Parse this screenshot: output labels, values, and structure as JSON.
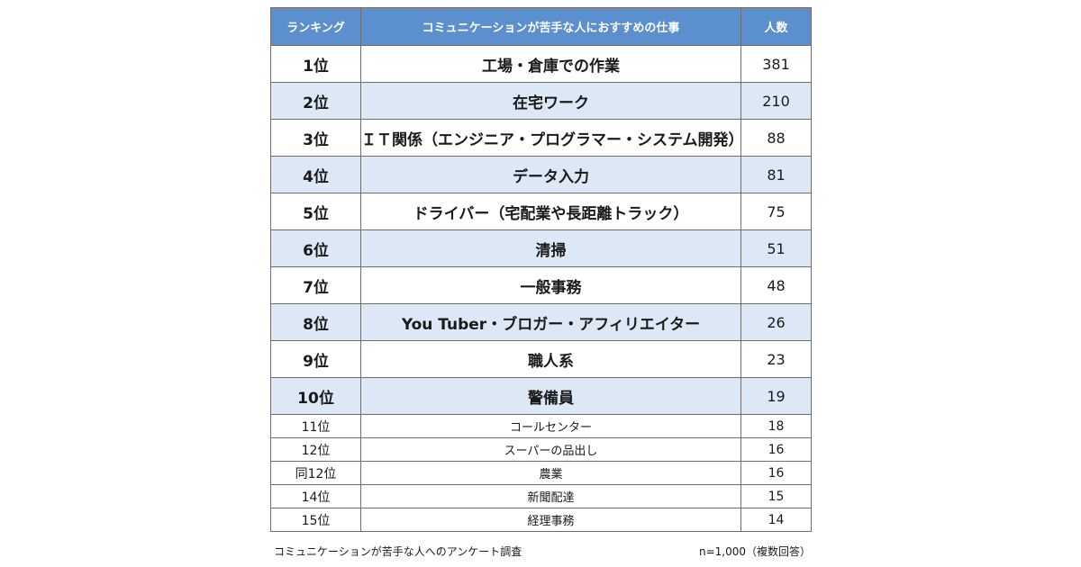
{
  "table": {
    "headers": {
      "rank": "ランキング",
      "job": "コミュニケーションが苦手な人におすすめの仕事",
      "count": "人数"
    },
    "rows": [
      {
        "rank": "1位",
        "job": "工場・倉庫での作業",
        "count": "381"
      },
      {
        "rank": "2位",
        "job": "在宅ワーク",
        "count": "210"
      },
      {
        "rank": "3位",
        "job": "ＩＴ関係（エンジニア・プログラマー・システム開発）",
        "count": "88"
      },
      {
        "rank": "4位",
        "job": "データ入力",
        "count": "81"
      },
      {
        "rank": "5位",
        "job": "ドライバー（宅配業や長距離トラック）",
        "count": "75"
      },
      {
        "rank": "6位",
        "job": "清掃",
        "count": "51"
      },
      {
        "rank": "7位",
        "job": "一般事務",
        "count": "48"
      },
      {
        "rank": "8位",
        "job": "You Tuber・ブロガー・アフィリエイター",
        "count": "26"
      },
      {
        "rank": "9位",
        "job": "職人系",
        "count": "23"
      },
      {
        "rank": "10位",
        "job": "警備員",
        "count": "19"
      },
      {
        "rank": "11位",
        "job": "コールセンター",
        "count": "18"
      },
      {
        "rank": "12位",
        "job": "スーパーの品出し",
        "count": "16"
      },
      {
        "rank": "同12位",
        "job": "農業",
        "count": "16"
      },
      {
        "rank": "14位",
        "job": "新聞配達",
        "count": "15"
      },
      {
        "rank": "15位",
        "job": "経理事務",
        "count": "14"
      }
    ]
  },
  "footer": {
    "source": "コミュニケーションが苦手な人へのアンケート調査",
    "sample": "n=1,000（複数回答）"
  },
  "colors": {
    "header_bg": "#5b8fce",
    "stripe_bg": "#dce8f5",
    "border": "#6e6e6e"
  }
}
